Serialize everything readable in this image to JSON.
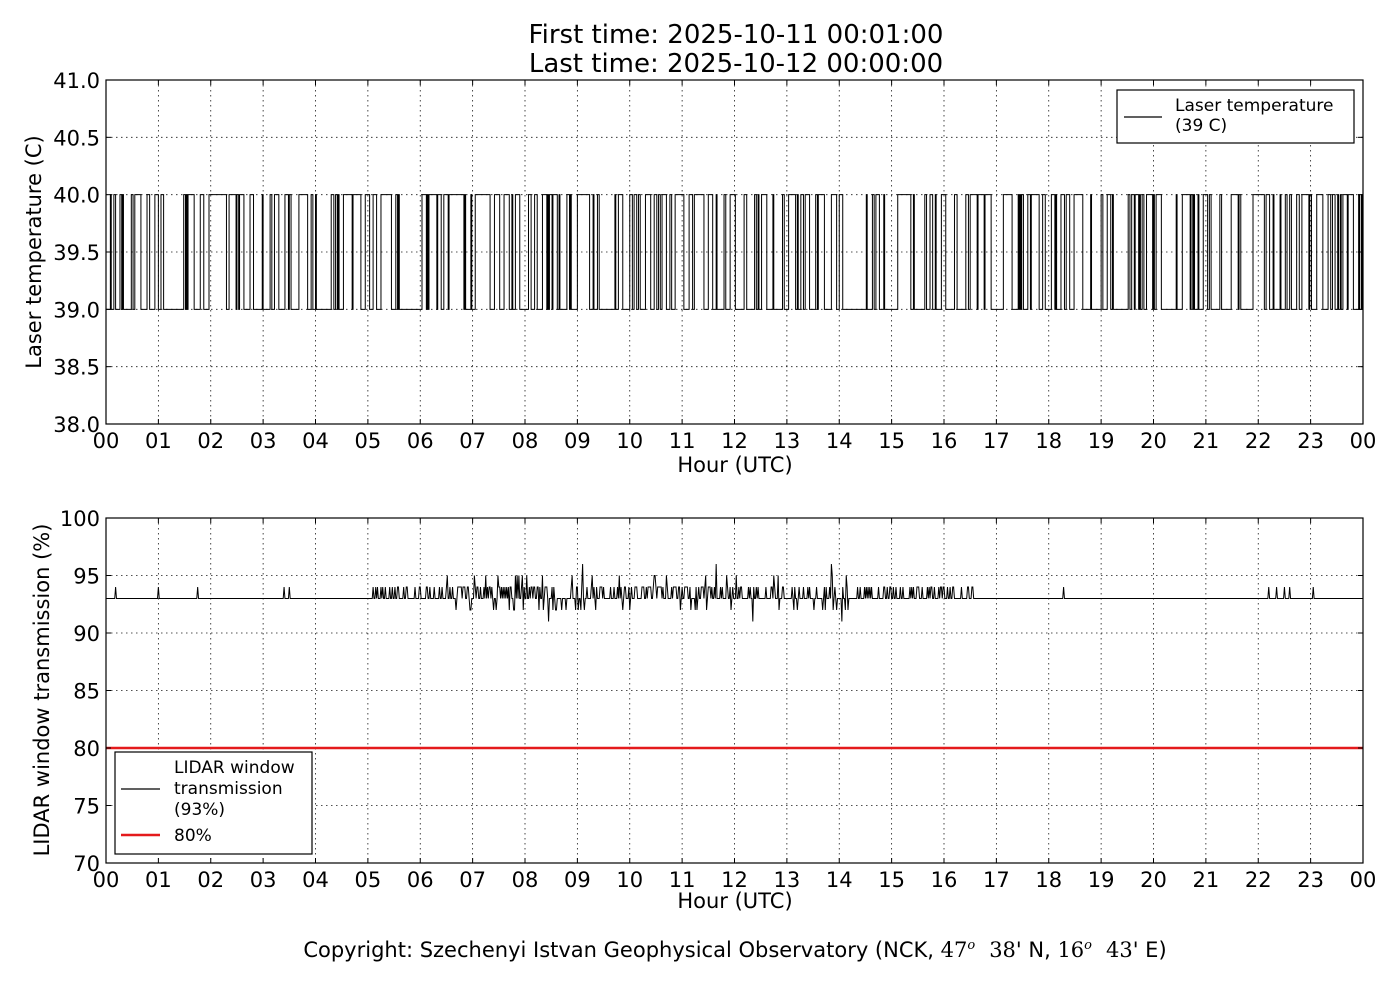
{
  "chart_data": [
    {
      "type": "line",
      "title_lines": [
        "First time: 2025-10-11 00:01:00",
        "Last time: 2025-10-12 00:00:00"
      ],
      "xlabel": "Hour (UTC)",
      "ylabel": "Laser temperature (C)",
      "xlim": [
        0,
        24
      ],
      "ylim": [
        38.0,
        41.0
      ],
      "x_tick_labels": [
        "00",
        "01",
        "02",
        "03",
        "04",
        "05",
        "06",
        "07",
        "08",
        "09",
        "10",
        "11",
        "12",
        "13",
        "14",
        "15",
        "16",
        "17",
        "18",
        "19",
        "20",
        "21",
        "22",
        "23",
        "00"
      ],
      "y_ticks": [
        38.0,
        38.5,
        39.0,
        39.5,
        40.0,
        40.5,
        41.0
      ],
      "y_tick_labels": [
        "38.0",
        "38.5",
        "39.0",
        "39.5",
        "40.0",
        "40.5",
        "41.0"
      ],
      "grid": true,
      "legend_position": "top-right",
      "series": [
        {
          "name": "Laser temperature\n(39 C)",
          "color": "#000000",
          "style": "step",
          "sample_interval_minutes": 1,
          "low_value": 39.0,
          "high_value": 40.0,
          "high_fraction_by_hour": [
            0.55,
            0.5,
            0.6,
            0.45,
            0.5,
            0.45,
            0.5,
            0.5,
            0.45,
            0.4,
            0.45,
            0.4,
            0.35,
            0.4,
            0.35,
            0.45,
            0.45,
            0.4,
            0.45,
            0.45,
            0.3,
            0.35,
            0.4,
            0.35
          ]
        }
      ]
    },
    {
      "type": "line",
      "xlabel": "Hour (UTC)",
      "ylabel": "LIDAR window transmission (%)",
      "xlim": [
        0,
        24
      ],
      "ylim": [
        70,
        100
      ],
      "x_tick_labels": [
        "00",
        "01",
        "02",
        "03",
        "04",
        "05",
        "06",
        "07",
        "08",
        "09",
        "10",
        "11",
        "12",
        "13",
        "14",
        "15",
        "16",
        "17",
        "18",
        "19",
        "20",
        "21",
        "22",
        "23",
        "00"
      ],
      "y_ticks": [
        70,
        75,
        80,
        85,
        90,
        95,
        100
      ],
      "y_tick_labels": [
        "70",
        "75",
        "80",
        "85",
        "90",
        "95",
        "100"
      ],
      "grid": true,
      "legend_position": "bottom-left",
      "series": [
        {
          "name": "LIDAR window\ntransmission\n(93%)",
          "color": "#000000",
          "baseline": 93,
          "spikes": [
            {
              "x": 0.18,
              "y": 94
            },
            {
              "x": 1.0,
              "y": 94
            },
            {
              "x": 1.75,
              "y": 94
            },
            {
              "x": 3.4,
              "y": 94
            },
            {
              "x": 3.5,
              "y": 94
            },
            {
              "x": 18.28,
              "y": 94
            },
            {
              "x": 22.2,
              "y": 94
            },
            {
              "x": 22.35,
              "y": 94
            },
            {
              "x": 22.5,
              "y": 94
            },
            {
              "x": 22.6,
              "y": 94
            },
            {
              "x": 23.05,
              "y": 94
            }
          ],
          "noisy_segment": {
            "x_start": 4.95,
            "x_end": 16.6
          },
          "notable_points": [
            {
              "x": 8.45,
              "y": 91
            },
            {
              "x": 9.1,
              "y": 96
            },
            {
              "x": 11.65,
              "y": 96
            },
            {
              "x": 12.35,
              "y": 91
            },
            {
              "x": 13.85,
              "y": 96
            },
            {
              "x": 14.05,
              "y": 91
            }
          ]
        },
        {
          "name": "80%",
          "color": "#e41a1c",
          "constant": 80
        }
      ]
    }
  ],
  "footer": {
    "prefix": "Copyright: Szechenyi Istvan Geophysical Observatory (NCK, ",
    "lat_deg": "47",
    "lat_min": "38",
    "lat_suffix": "' N, ",
    "lon_deg": "16",
    "lon_min": "43",
    "lon_suffix": "' E)"
  }
}
